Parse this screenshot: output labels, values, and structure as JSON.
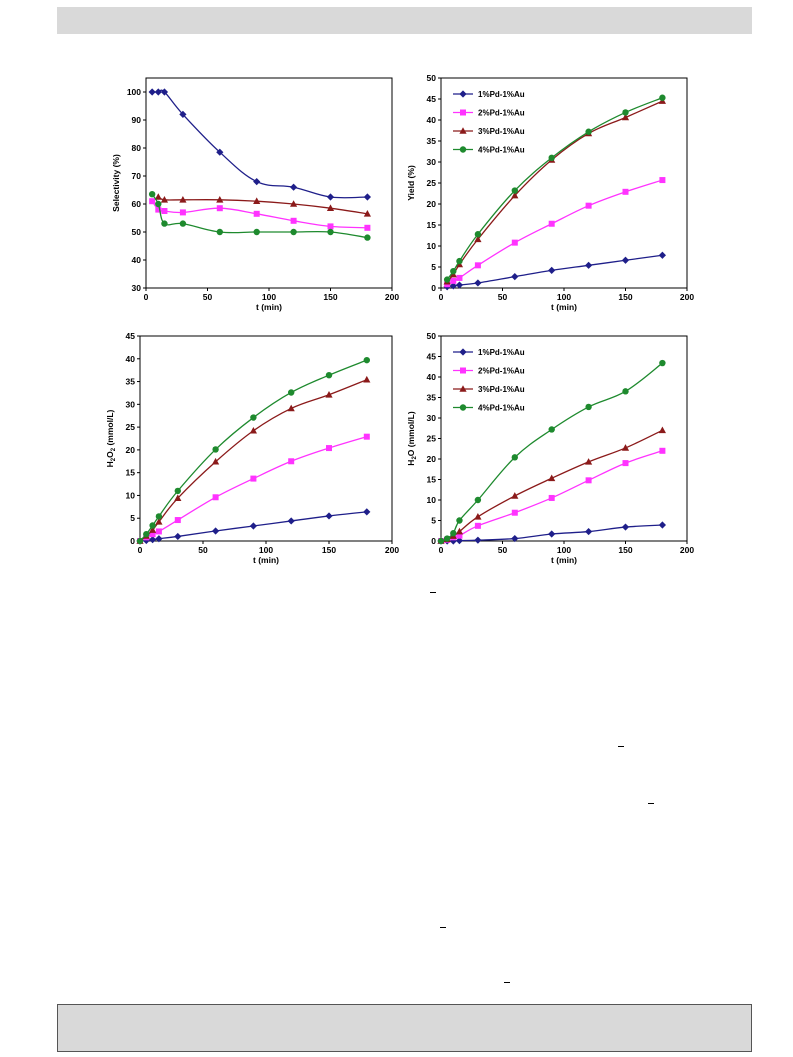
{
  "colors": {
    "series1": "#1f1f8a",
    "series2": "#ff33ff",
    "series3": "#8b1a1a",
    "series4": "#1e8a2e",
    "band": "#d9d9d9"
  },
  "chart_data": [
    {
      "type": "line",
      "title": "",
      "xlabel": "t (min)",
      "ylabel": "Selectivity (%)",
      "xlim": [
        0,
        200
      ],
      "ylim": [
        30,
        105
      ],
      "xticks": [
        0,
        50,
        100,
        150,
        200
      ],
      "yticks": [
        30,
        40,
        50,
        60,
        70,
        80,
        90,
        100
      ],
      "legend": "none",
      "series": [
        {
          "x": [
            5,
            10,
            15,
            30,
            60,
            90,
            120,
            150,
            180
          ],
          "y": [
            100,
            100,
            100,
            92,
            78.5,
            68,
            66,
            62.5,
            62.5
          ],
          "marker": "diamond",
          "color": "#1f1f8a"
        },
        {
          "x": [
            5,
            10,
            15,
            30,
            60,
            90,
            120,
            150,
            180
          ],
          "y": [
            61,
            58,
            57.5,
            57,
            58.5,
            56.5,
            54,
            52,
            51.5
          ],
          "marker": "square",
          "color": "#ff33ff"
        },
        {
          "x": [
            10,
            15,
            30,
            60,
            90,
            120,
            150,
            180
          ],
          "y": [
            62.5,
            61.5,
            61.5,
            61.5,
            61,
            60,
            58.5,
            56.5
          ],
          "marker": "triangle",
          "color": "#8b1a1a"
        },
        {
          "x": [
            5,
            10,
            15,
            30,
            60,
            90,
            120,
            150,
            180
          ],
          "y": [
            63.5,
            60,
            53,
            53,
            50,
            50,
            50,
            50,
            48
          ],
          "marker": "circle",
          "color": "#1e8a2e"
        }
      ]
    },
    {
      "type": "line",
      "title": "",
      "xlabel": "t (min)",
      "ylabel": "Yield (%)",
      "xlim": [
        0,
        200
      ],
      "ylim": [
        0,
        50
      ],
      "xticks": [
        0,
        50,
        100,
        150,
        200
      ],
      "yticks": [
        0,
        5,
        10,
        15,
        20,
        25,
        30,
        35,
        40,
        45,
        50
      ],
      "legend": "top-left",
      "series": [
        {
          "name": "1%Pd-1%Au",
          "x": [
            5,
            10,
            15,
            30,
            60,
            90,
            120,
            150,
            180
          ],
          "y": [
            0.3,
            0.5,
            0.7,
            1.2,
            2.7,
            4.2,
            5.4,
            6.6,
            7.8
          ],
          "marker": "diamond",
          "color": "#1f1f8a"
        },
        {
          "name": "2%Pd-1%Au",
          "x": [
            5,
            10,
            15,
            30,
            60,
            90,
            120,
            150,
            180
          ],
          "y": [
            0.9,
            1.7,
            2.4,
            5.4,
            10.8,
            15.3,
            19.6,
            22.9,
            25.7
          ],
          "marker": "square",
          "color": "#ff33ff"
        },
        {
          "name": "3%Pd-1%Au",
          "x": [
            5,
            10,
            15,
            30,
            60,
            90,
            120,
            150,
            180
          ],
          "y": [
            1.5,
            3.2,
            5.6,
            11.6,
            22.0,
            30.5,
            36.8,
            40.6,
            44.5
          ],
          "marker": "triangle",
          "color": "#8b1a1a"
        },
        {
          "name": "4%Pd-1%Au",
          "x": [
            5,
            10,
            15,
            30,
            60,
            90,
            120,
            150,
            180
          ],
          "y": [
            2.0,
            4.0,
            6.4,
            12.8,
            23.2,
            31.0,
            37.2,
            41.8,
            45.3
          ],
          "marker": "circle",
          "color": "#1e8a2e"
        }
      ]
    },
    {
      "type": "line",
      "title": "",
      "xlabel": "t (min)",
      "ylabel": "H2O2 (mmol/L)",
      "xlim": [
        0,
        200
      ],
      "ylim": [
        0,
        45
      ],
      "xticks": [
        0,
        50,
        100,
        150,
        200
      ],
      "yticks": [
        0,
        5,
        10,
        15,
        20,
        25,
        30,
        35,
        40,
        45
      ],
      "legend": "none",
      "series": [
        {
          "x": [
            0,
            5,
            10,
            15,
            30,
            60,
            90,
            120,
            150,
            180
          ],
          "y": [
            0,
            0.1,
            0.3,
            0.5,
            1.0,
            2.2,
            3.3,
            4.4,
            5.5,
            6.4
          ],
          "marker": "diamond",
          "color": "#1f1f8a"
        },
        {
          "x": [
            0,
            5,
            10,
            15,
            30,
            60,
            90,
            120,
            150,
            180
          ],
          "y": [
            0,
            0.8,
            1.5,
            2.1,
            4.6,
            9.6,
            13.7,
            17.5,
            20.4,
            22.9
          ],
          "marker": "square",
          "color": "#ff33ff"
        },
        {
          "x": [
            0,
            5,
            10,
            15,
            30,
            60,
            90,
            120,
            150,
            180
          ],
          "y": [
            0,
            1.1,
            2.4,
            4.2,
            9.4,
            17.4,
            24.2,
            29.1,
            32.1,
            35.4
          ],
          "marker": "triangle",
          "color": "#8b1a1a"
        },
        {
          "x": [
            0,
            5,
            10,
            15,
            30,
            60,
            90,
            120,
            150,
            180
          ],
          "y": [
            0,
            1.5,
            3.4,
            5.4,
            11.0,
            20.1,
            27.1,
            32.6,
            36.4,
            39.7
          ],
          "marker": "circle",
          "color": "#1e8a2e"
        }
      ]
    },
    {
      "type": "line",
      "title": "",
      "xlabel": "t (min)",
      "ylabel": "H2O (mmol/L)",
      "xlim": [
        0,
        200
      ],
      "ylim": [
        0,
        50
      ],
      "xticks": [
        0,
        50,
        100,
        150,
        200
      ],
      "yticks": [
        0,
        5,
        10,
        15,
        20,
        25,
        30,
        35,
        40,
        45,
        50
      ],
      "legend": "top-left",
      "series": [
        {
          "name": "1%Pd-1%Au",
          "x": [
            0,
            5,
            10,
            15,
            30,
            60,
            90,
            120,
            150,
            180
          ],
          "y": [
            0,
            0,
            0,
            0.1,
            0.2,
            0.6,
            1.7,
            2.3,
            3.4,
            3.9
          ],
          "marker": "diamond",
          "color": "#1f1f8a"
        },
        {
          "name": "2%Pd-1%Au",
          "x": [
            0,
            5,
            10,
            15,
            30,
            60,
            90,
            120,
            150,
            180
          ],
          "y": [
            0,
            0.3,
            0.9,
            1.3,
            3.7,
            6.9,
            10.5,
            14.8,
            19.0,
            22.0
          ],
          "marker": "square",
          "color": "#ff33ff"
        },
        {
          "name": "3%Pd-1%Au",
          "x": [
            0,
            5,
            10,
            15,
            30,
            60,
            90,
            120,
            150,
            180
          ],
          "y": [
            0,
            0.4,
            1.2,
            2.3,
            5.9,
            11.0,
            15.3,
            19.3,
            22.7,
            27.0
          ],
          "marker": "triangle",
          "color": "#8b1a1a"
        },
        {
          "name": "4%Pd-1%Au",
          "x": [
            0,
            5,
            10,
            15,
            30,
            60,
            90,
            120,
            150,
            180
          ],
          "y": [
            0,
            0.6,
            1.9,
            5.0,
            10.0,
            20.4,
            27.2,
            32.7,
            36.5,
            43.4
          ],
          "marker": "circle",
          "color": "#1e8a2e"
        }
      ]
    }
  ]
}
